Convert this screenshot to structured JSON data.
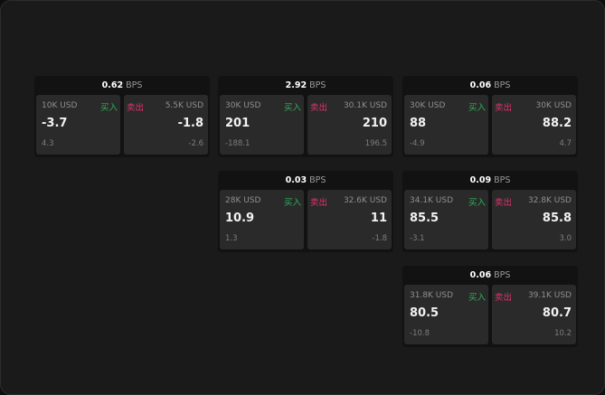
{
  "labels": {
    "unit": "BPS",
    "buy": "买入",
    "sell": "卖出"
  },
  "colors": {
    "buy": "#2fae5a",
    "sell": "#e0336a",
    "background": "#1a1a1a",
    "tile": "#2a2a2a"
  },
  "cards": [
    {
      "spread": "0.62",
      "buy": {
        "amount": "10K USD",
        "price": "-3.7",
        "change": "4.3"
      },
      "sell": {
        "amount": "5.5K USD",
        "price": "-1.8",
        "change": "-2.6"
      }
    },
    {
      "spread": "2.92",
      "buy": {
        "amount": "30K USD",
        "price": "201",
        "change": "-188.1"
      },
      "sell": {
        "amount": "30.1K USD",
        "price": "210",
        "change": "196.5"
      }
    },
    {
      "spread": "0.06",
      "buy": {
        "amount": "30K USD",
        "price": "88",
        "change": "-4.9"
      },
      "sell": {
        "amount": "30K USD",
        "price": "88.2",
        "change": "4.7"
      }
    },
    {
      "spread": "0.03",
      "buy": {
        "amount": "28K USD",
        "price": "10.9",
        "change": "1.3"
      },
      "sell": {
        "amount": "32.6K USD",
        "price": "11",
        "change": "-1.8"
      }
    },
    {
      "spread": "0.09",
      "buy": {
        "amount": "34.1K USD",
        "price": "85.5",
        "change": "-3.1"
      },
      "sell": {
        "amount": "32.8K USD",
        "price": "85.8",
        "change": "3.0"
      }
    },
    {
      "spread": "0.06",
      "buy": {
        "amount": "31.8K USD",
        "price": "80.5",
        "change": "-10.8"
      },
      "sell": {
        "amount": "39.1K USD",
        "price": "80.7",
        "change": "10.2"
      }
    }
  ]
}
